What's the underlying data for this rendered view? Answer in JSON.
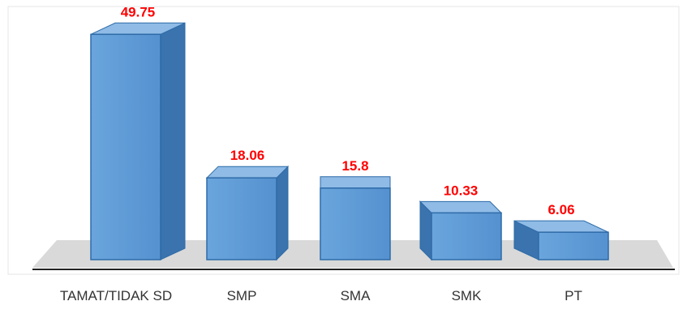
{
  "chart_data": {
    "type": "bar3d",
    "categories": [
      "TAMAT/TIDAK SD",
      "SMP",
      "SMA",
      "SMK",
      "PT"
    ],
    "values": [
      49.75,
      18.06,
      15.8,
      10.33,
      6.06
    ],
    "color": "#5b9bd5",
    "ylim": [
      0,
      55
    ]
  }
}
